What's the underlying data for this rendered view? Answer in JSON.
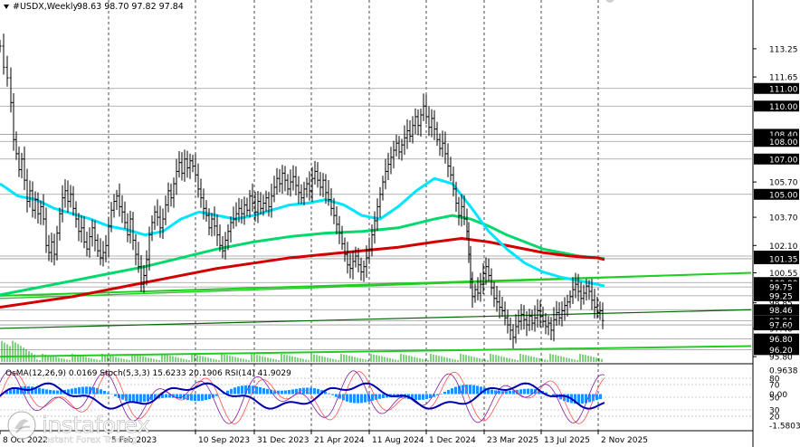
{
  "header": {
    "symbol": "#USDX,Weekly",
    "ohlc": "98.63 98.70 97.82 97.84"
  },
  "chart_data": {
    "type": "line",
    "price_axis": [
      {
        "v": 113.25,
        "t": "113.25",
        "tag": false
      },
      {
        "v": 111.65,
        "t": "111.65",
        "tag": false
      },
      {
        "v": 111.0,
        "t": "111.00",
        "tag": true
      },
      {
        "v": 110.0,
        "t": "110.00",
        "tag": true
      },
      {
        "v": 108.4,
        "t": "108.40",
        "tag": true
      },
      {
        "v": 108.0,
        "t": "108.00",
        "tag": true
      },
      {
        "v": 107.0,
        "t": "107.00",
        "tag": true
      },
      {
        "v": 105.7,
        "t": "105.70",
        "tag": false
      },
      {
        "v": 105.0,
        "t": "105.00",
        "tag": true
      },
      {
        "v": 103.7,
        "t": "103.70",
        "tag": false
      },
      {
        "v": 102.1,
        "t": "102.10",
        "tag": false
      },
      {
        "v": 101.5,
        "t": "101.50",
        "tag": true
      },
      {
        "v": 101.35,
        "t": "101.35",
        "tag": true
      },
      {
        "v": 100.55,
        "t": "100.55",
        "tag": false
      },
      {
        "v": 100.0,
        "t": "100.00",
        "tag": true
      },
      {
        "v": 99.75,
        "t": "99.75",
        "tag": true
      },
      {
        "v": 99.25,
        "t": "99.25",
        "tag": true
      },
      {
        "v": 98.85,
        "t": "98.85",
        "tag": false
      },
      {
        "v": 98.46,
        "t": "98.46",
        "tag": true
      },
      {
        "v": 97.84,
        "t": "97.84",
        "tag": true
      },
      {
        "v": 97.6,
        "t": "97.60",
        "tag": true
      },
      {
        "v": 97.4,
        "t": "97.40",
        "tag": false
      },
      {
        "v": 96.8,
        "t": "96.80",
        "tag": true
      },
      {
        "v": 96.2,
        "t": "96.20",
        "tag": true
      },
      {
        "v": 95.8,
        "t": "95.80",
        "tag": false
      }
    ],
    "x_labels": [
      {
        "t": "8 Oct 2022",
        "x": 0
      },
      {
        "t": "5 Feb 2023",
        "x": 120
      },
      {
        "t": "10 Sep 2023",
        "x": 216
      },
      {
        "t": "31 Dec 2023",
        "x": 281
      },
      {
        "t": "21 Apr 2024",
        "x": 344
      },
      {
        "t": "11 Aug 2024",
        "x": 408
      },
      {
        "t": "1 Dec 2024",
        "x": 471
      },
      {
        "t": "23 Mar 2025",
        "x": 535
      },
      {
        "t": "13 Jul 2025",
        "x": 598
      },
      {
        "t": "2 Nov 2025",
        "x": 661
      }
    ],
    "price_close": [
      [
        0,
        113.4
      ],
      [
        4,
        112.2
      ],
      [
        8,
        111.6
      ],
      [
        12,
        110.2
      ],
      [
        15,
        108.1
      ],
      [
        18,
        107.3
      ],
      [
        21,
        106.4
      ],
      [
        24,
        107.0
      ],
      [
        27,
        105.8
      ],
      [
        30,
        104.6
      ],
      [
        33,
        105.2
      ],
      [
        36,
        104.1
      ],
      [
        39,
        104.7
      ],
      [
        42,
        103.9
      ],
      [
        45,
        104.3
      ],
      [
        48,
        103.6
      ],
      [
        51,
        102.1
      ],
      [
        54,
        101.7
      ],
      [
        57,
        102.3
      ],
      [
        60,
        101.6
      ],
      [
        63,
        102.8
      ],
      [
        66,
        103.9
      ],
      [
        69,
        104.8
      ],
      [
        72,
        105.2
      ],
      [
        75,
        104.6
      ],
      [
        78,
        105.0
      ],
      [
        81,
        104.2
      ],
      [
        84,
        103.6
      ],
      [
        87,
        102.9
      ],
      [
        90,
        103.1
      ],
      [
        93,
        102.3
      ],
      [
        96,
        101.9
      ],
      [
        99,
        102.6
      ],
      [
        102,
        103.1
      ],
      [
        105,
        102.4
      ],
      [
        108,
        101.8
      ],
      [
        111,
        101.4
      ],
      [
        114,
        101.7
      ],
      [
        117,
        102.1
      ],
      [
        120,
        103.2
      ],
      [
        123,
        104.1
      ],
      [
        126,
        104.6
      ],
      [
        129,
        104.9
      ],
      [
        132,
        104.3
      ],
      [
        135,
        104.0
      ],
      [
        138,
        103.4
      ],
      [
        141,
        102.7
      ],
      [
        144,
        103.6
      ],
      [
        147,
        102.4
      ],
      [
        150,
        101.6
      ],
      [
        153,
        100.9
      ],
      [
        156,
        99.9
      ],
      [
        159,
        100.4
      ],
      [
        162,
        101.3
      ],
      [
        165,
        102.7
      ],
      [
        168,
        103.4
      ],
      [
        171,
        104.0
      ],
      [
        174,
        103.7
      ],
      [
        177,
        103.1
      ],
      [
        180,
        103.6
      ],
      [
        183,
        104.4
      ],
      [
        186,
        105.2
      ],
      [
        189,
        104.8
      ],
      [
        192,
        105.6
      ],
      [
        195,
        106.3
      ],
      [
        198,
        106.8
      ],
      [
        201,
        106.2
      ],
      [
        204,
        107.0
      ],
      [
        207,
        106.5
      ],
      [
        210,
        106.9
      ],
      [
        213,
        106.6
      ],
      [
        216,
        106.1
      ],
      [
        219,
        105.3
      ],
      [
        222,
        104.8
      ],
      [
        225,
        104.2
      ],
      [
        228,
        103.8
      ],
      [
        231,
        103.1
      ],
      [
        234,
        103.6
      ],
      [
        237,
        103.2
      ],
      [
        240,
        102.7
      ],
      [
        243,
        102.1
      ],
      [
        246,
        101.8
      ],
      [
        249,
        102.4
      ],
      [
        252,
        102.9
      ],
      [
        255,
        103.4
      ],
      [
        258,
        103.6
      ],
      [
        261,
        103.9
      ],
      [
        264,
        104.2
      ],
      [
        267,
        103.9
      ],
      [
        270,
        104.4
      ],
      [
        273,
        104.1
      ],
      [
        276,
        104.9
      ],
      [
        279,
        104.5
      ],
      [
        282,
        104.0
      ],
      [
        285,
        104.6
      ],
      [
        288,
        104.2
      ],
      [
        291,
        104.5
      ],
      [
        294,
        104.8
      ],
      [
        297,
        104.3
      ],
      [
        300,
        104.9
      ],
      [
        303,
        105.4
      ],
      [
        306,
        105.9
      ],
      [
        309,
        105.6
      ],
      [
        312,
        106.2
      ],
      [
        315,
        105.8
      ],
      [
        318,
        105.3
      ],
      [
        321,
        105.7
      ],
      [
        324,
        106.0
      ],
      [
        327,
        105.5
      ],
      [
        330,
        105.1
      ],
      [
        333,
        104.8
      ],
      [
        336,
        105.3
      ],
      [
        339,
        105.6
      ],
      [
        342,
        105.2
      ],
      [
        345,
        105.9
      ],
      [
        348,
        106.3
      ],
      [
        351,
        105.8
      ],
      [
        354,
        105.4
      ],
      [
        357,
        105.8
      ],
      [
        360,
        105.1
      ],
      [
        363,
        104.7
      ],
      [
        366,
        104.2
      ],
      [
        369,
        103.8
      ],
      [
        372,
        103.3
      ],
      [
        375,
        102.8
      ],
      [
        378,
        102.2
      ],
      [
        381,
        101.6
      ],
      [
        384,
        101.0
      ],
      [
        387,
        100.8
      ],
      [
        390,
        101.2
      ],
      [
        393,
        101.5
      ],
      [
        396,
        101.0
      ],
      [
        399,
        100.6
      ],
      [
        402,
        100.9
      ],
      [
        405,
        101.4
      ],
      [
        408,
        101.9
      ],
      [
        411,
        102.7
      ],
      [
        414,
        103.5
      ],
      [
        417,
        104.3
      ],
      [
        420,
        105.0
      ],
      [
        423,
        105.7
      ],
      [
        426,
        106.3
      ],
      [
        429,
        106.7
      ],
      [
        432,
        107.1
      ],
      [
        435,
        107.5
      ],
      [
        438,
        107.9
      ],
      [
        441,
        107.4
      ],
      [
        444,
        107.8
      ],
      [
        447,
        108.2
      ],
      [
        450,
        108.6
      ],
      [
        453,
        108.3
      ],
      [
        456,
        108.9
      ],
      [
        459,
        109.4
      ],
      [
        462,
        108.9
      ],
      [
        465,
        109.5
      ],
      [
        468,
        110.0
      ],
      [
        471,
        109.4
      ],
      [
        474,
        108.8
      ],
      [
        477,
        109.3
      ],
      [
        480,
        108.7
      ],
      [
        483,
        108.1
      ],
      [
        486,
        107.6
      ],
      [
        489,
        107.9
      ],
      [
        492,
        107.3
      ],
      [
        495,
        106.6
      ],
      [
        498,
        106.1
      ],
      [
        501,
        105.3
      ],
      [
        504,
        104.5
      ],
      [
        507,
        103.8
      ],
      [
        510,
        104.3
      ],
      [
        513,
        103.6
      ],
      [
        516,
        102.9
      ],
      [
        518,
        101.6
      ],
      [
        520,
        100.2
      ],
      [
        522,
        99.2
      ],
      [
        525,
        99.6
      ],
      [
        528,
        99.4
      ],
      [
        531,
        99.9
      ],
      [
        534,
        100.5
      ],
      [
        537,
        100.9
      ],
      [
        540,
        100.4
      ],
      [
        543,
        99.7
      ],
      [
        546,
        99.1
      ],
      [
        549,
        98.9
      ],
      [
        552,
        98.6
      ],
      [
        555,
        98.4
      ],
      [
        558,
        98.0
      ],
      [
        561,
        97.6
      ],
      [
        564,
        97.3
      ],
      [
        567,
        96.9
      ],
      [
        570,
        97.5
      ],
      [
        573,
        97.8
      ],
      [
        576,
        98.2
      ],
      [
        579,
        97.9
      ],
      [
        582,
        97.6
      ],
      [
        585,
        98.1
      ],
      [
        588,
        97.7
      ],
      [
        591,
        98.0
      ],
      [
        594,
        98.4
      ],
      [
        597,
        98.1
      ],
      [
        600,
        97.8
      ],
      [
        603,
        97.5
      ],
      [
        606,
        97.7
      ],
      [
        609,
        97.3
      ],
      [
        612,
        97.9
      ],
      [
        615,
        98.3
      ],
      [
        618,
        98.0
      ],
      [
        621,
        98.4
      ],
      [
        624,
        98.7
      ],
      [
        627,
        98.9
      ],
      [
        630,
        99.2
      ],
      [
        633,
        99.6
      ],
      [
        636,
        99.9
      ],
      [
        639,
        99.5
      ],
      [
        642,
        99.1
      ],
      [
        645,
        99.4
      ],
      [
        648,
        99.8
      ],
      [
        651,
        99.5
      ],
      [
        654,
        99.0
      ],
      [
        657,
        98.6
      ],
      [
        660,
        98.3
      ],
      [
        663,
        98.4
      ],
      [
        666,
        97.84
      ]
    ],
    "ma_cyan": [
      [
        0,
        105.6
      ],
      [
        20,
        104.9
      ],
      [
        40,
        104.7
      ],
      [
        60,
        104.2
      ],
      [
        80,
        103.9
      ],
      [
        100,
        103.6
      ],
      [
        120,
        103.2
      ],
      [
        140,
        103.0
      ],
      [
        160,
        102.7
      ],
      [
        180,
        102.9
      ],
      [
        200,
        103.6
      ],
      [
        220,
        104.0
      ],
      [
        240,
        103.8
      ],
      [
        260,
        103.6
      ],
      [
        280,
        103.8
      ],
      [
        300,
        104.1
      ],
      [
        320,
        104.4
      ],
      [
        340,
        104.5
      ],
      [
        360,
        104.7
      ],
      [
        380,
        104.4
      ],
      [
        400,
        103.8
      ],
      [
        420,
        103.6
      ],
      [
        440,
        104.3
      ],
      [
        460,
        105.2
      ],
      [
        480,
        105.9
      ],
      [
        500,
        105.6
      ],
      [
        520,
        104.3
      ],
      [
        540,
        102.9
      ],
      [
        560,
        101.9
      ],
      [
        580,
        101.1
      ],
      [
        600,
        100.6
      ],
      [
        620,
        100.3
      ],
      [
        640,
        100.1
      ],
      [
        660,
        99.9
      ],
      [
        668,
        99.8
      ]
    ],
    "ma_green": [
      [
        0,
        99.3
      ],
      [
        40,
        99.7
      ],
      [
        80,
        100.1
      ],
      [
        120,
        100.5
      ],
      [
        160,
        100.9
      ],
      [
        200,
        101.4
      ],
      [
        240,
        101.9
      ],
      [
        280,
        102.3
      ],
      [
        320,
        102.6
      ],
      [
        360,
        102.8
      ],
      [
        400,
        102.9
      ],
      [
        440,
        103.1
      ],
      [
        480,
        103.6
      ],
      [
        500,
        103.8
      ],
      [
        520,
        103.6
      ],
      [
        540,
        103.2
      ],
      [
        560,
        102.7
      ],
      [
        580,
        102.3
      ],
      [
        600,
        101.9
      ],
      [
        620,
        101.7
      ],
      [
        640,
        101.5
      ],
      [
        660,
        101.4
      ],
      [
        668,
        101.35
      ]
    ],
    "ma_red": [
      [
        0,
        98.6
      ],
      [
        40,
        98.9
      ],
      [
        80,
        99.2
      ],
      [
        120,
        99.6
      ],
      [
        160,
        100.0
      ],
      [
        200,
        100.4
      ],
      [
        240,
        100.8
      ],
      [
        280,
        101.1
      ],
      [
        320,
        101.4
      ],
      [
        360,
        101.6
      ],
      [
        400,
        101.8
      ],
      [
        440,
        102.0
      ],
      [
        480,
        102.3
      ],
      [
        510,
        102.5
      ],
      [
        540,
        102.3
      ],
      [
        570,
        102.0
      ],
      [
        600,
        101.7
      ],
      [
        630,
        101.5
      ],
      [
        660,
        101.4
      ],
      [
        668,
        101.3
      ]
    ],
    "channel_upper": [
      [
        0,
        99.25
      ],
      [
        830,
        100.55
      ]
    ],
    "channel_lower": [
      [
        0,
        97.4
      ],
      [
        830,
        98.46
      ]
    ],
    "ma_lower_green": [
      [
        0,
        99.1
      ],
      [
        830,
        100.55
      ]
    ],
    "ma_bottom_green": [
      [
        0,
        95.8
      ],
      [
        830,
        96.4
      ]
    ],
    "indicator": {
      "label": "OsMA(12,26,9) 0.0169  Stoch(5,3,3) 15.6233 20.1906  RSI(14) 41.9029",
      "axis": [
        {
          "v": 0.9638,
          "t": "0.9638"
        },
        {
          "v": 0.8,
          "t": "80"
        },
        {
          "v": 0.7,
          "t": "70"
        },
        {
          "v": 0.5,
          "t": "50"
        },
        {
          "v": 0.3,
          "t": "30"
        },
        {
          "v": 0.2,
          "t": "20"
        },
        {
          "v": 0.0,
          "t": "-1.5803"
        }
      ],
      "zero_label": "0.00"
    }
  },
  "branding": {
    "name": "instaforex",
    "tagline": "Instant Forex Trading"
  },
  "colors": {
    "cyan": "#00e5ff",
    "green": "#00d96b",
    "red": "#d40000",
    "lime": "#22cc22",
    "bar": "#000000",
    "hist": "#1e90ff",
    "stoch": "#0000aa",
    "rsi": "#7b1fa2"
  }
}
